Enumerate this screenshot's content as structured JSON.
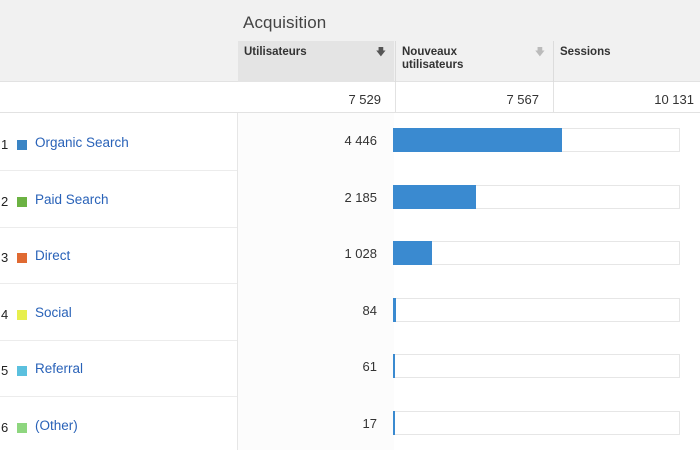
{
  "section_title": "Acquisition",
  "columns": {
    "users": "Utilisateurs",
    "new_users": "Nouveaux utilisateurs",
    "sessions": "Sessions"
  },
  "totals": {
    "users": "7 529",
    "new_users": "7 567",
    "sessions": "10 131"
  },
  "colors": {
    "bar": "#3a8ad0",
    "link": "#2962b8"
  },
  "rows": [
    {
      "index": "1",
      "channel": "Organic Search",
      "users": "4 446",
      "users_value": 4446,
      "color": "#3a84c4"
    },
    {
      "index": "2",
      "channel": "Paid Search",
      "users": "2 185",
      "users_value": 2185,
      "color": "#6cb243"
    },
    {
      "index": "3",
      "channel": "Direct",
      "users": "1 028",
      "users_value": 1028,
      "color": "#e06a32"
    },
    {
      "index": "4",
      "channel": "Social",
      "users": "84",
      "users_value": 84,
      "color": "#e7ef4d"
    },
    {
      "index": "5",
      "channel": "Referral",
      "users": "61",
      "users_value": 61,
      "color": "#5bc0de"
    },
    {
      "index": "6",
      "channel": "(Other)",
      "users": "17",
      "users_value": 17,
      "color": "#8ed67f"
    }
  ]
}
